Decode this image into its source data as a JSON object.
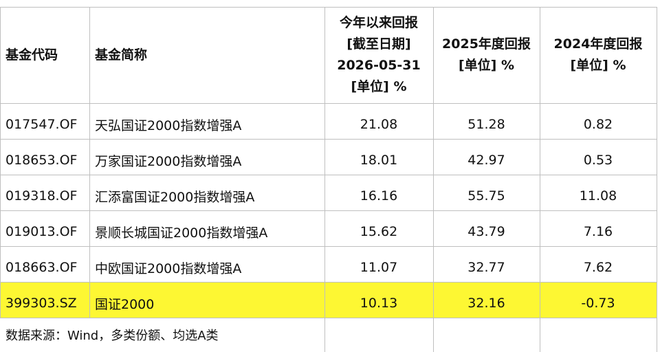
{
  "table": {
    "header": [
      [
        "基金代码"
      ],
      [
        "基金简称"
      ],
      [
        "今年以来回报",
        "[截至日期]",
        "2026-05-31",
        "[单位] %"
      ],
      [
        "2025年度回报",
        "[单位] %"
      ],
      [
        "2024年度回报",
        "[单位] %"
      ]
    ],
    "rows": [
      [
        "017547.OF",
        "天弘国证2000指数增强A",
        "21.08",
        "51.28",
        "0.82"
      ],
      [
        "018653.OF",
        "万家国证2000指数增强A",
        "18.01",
        "42.97",
        "0.53"
      ],
      [
        "019318.OF",
        "汇添富国证2000指数增强A",
        "16.16",
        "55.75",
        "11.08"
      ],
      [
        "019013.OF",
        "景顺长城国证2000指数增强A",
        "15.62",
        "43.79",
        "7.16"
      ],
      [
        "018663.OF",
        "中欧国证2000指数增强A",
        "11.07",
        "32.77",
        "7.62"
      ],
      [
        "399303.SZ",
        "国证2000",
        "10.13",
        "32.16",
        "-0.73"
      ]
    ],
    "highlight_row": 5,
    "highlight_color": "#fdf733"
  },
  "footer": {
    "note": "数据来源：Wind，多类份额、均选A类"
  }
}
